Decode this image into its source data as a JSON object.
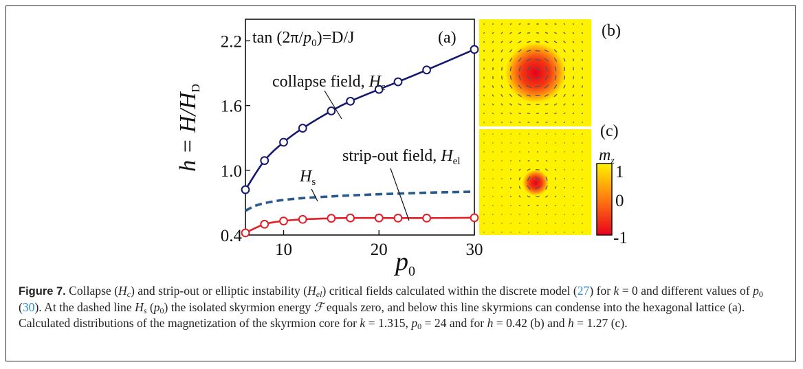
{
  "chart_data": {
    "type": "line",
    "panel_label": "(a)",
    "equation": {
      "base": "tan (2π/",
      "var": "p",
      "sub": "0",
      "rest": ")=D/J"
    },
    "ylabel": {
      "base": "h = H/H",
      "sub": "D"
    },
    "xlabel": {
      "base": "p",
      "sub": "0"
    },
    "xlim": [
      6,
      30
    ],
    "ylim": [
      0.4,
      2.4
    ],
    "x_ticks": [
      10,
      20,
      30
    ],
    "y_ticks": [
      0.4,
      1.0,
      1.6,
      2.2
    ],
    "grid": false,
    "series": [
      {
        "name": "collapse field, H_c",
        "label_base": "collapse field, ",
        "label_var": "H",
        "label_sub": "c",
        "color": "#15186e",
        "style": "solid-markers",
        "x": [
          6,
          8,
          10,
          12,
          15,
          17,
          20,
          22,
          25,
          30
        ],
        "y": [
          0.82,
          1.09,
          1.26,
          1.39,
          1.55,
          1.64,
          1.75,
          1.82,
          1.93,
          2.12
        ]
      },
      {
        "name": "H_s",
        "label_base": "",
        "label_var": "H",
        "label_sub": "s",
        "color": "#2b5b8c",
        "style": "dashed",
        "x": [
          6,
          7,
          8,
          9,
          10,
          12,
          15,
          17,
          20,
          22,
          25,
          28,
          30
        ],
        "y": [
          0.625,
          0.67,
          0.695,
          0.712,
          0.725,
          0.742,
          0.758,
          0.767,
          0.778,
          0.784,
          0.792,
          0.798,
          0.802
        ]
      },
      {
        "name": "strip-out field, H_el",
        "label_base": "strip-out field, ",
        "label_var": "H",
        "label_sub": "el",
        "color": "#e01f26",
        "style": "solid-markers",
        "x": [
          6,
          8,
          10,
          12,
          15,
          17,
          20,
          22,
          25,
          30
        ],
        "y": [
          0.42,
          0.5,
          0.53,
          0.545,
          0.555,
          0.558,
          0.558,
          0.557,
          0.557,
          0.56
        ]
      }
    ],
    "panels": [
      {
        "label": "(b)",
        "core_radius": 0.28
      },
      {
        "label": "(c)",
        "core_radius": 0.12
      }
    ],
    "colorbar": {
      "title_base": "m",
      "title_sub": "z",
      "ticks": [
        "1",
        "0",
        "-1"
      ],
      "colors": [
        "#fff200",
        "#ff7a10",
        "#e8001c"
      ]
    }
  },
  "caption": {
    "fig_label": "Figure 7.",
    "t1": " Collapse (",
    "t2": ") and strip-out or elliptic instability (",
    "t3": ") critical fields calculated within the discrete model (",
    "ref1": "27",
    "t4": ") for ",
    "t5": " = 0 and different values of ",
    "t6": " (",
    "ref2": "30",
    "t7": "). At the dashed line ",
    "t8": ") the isolated skyrmion energy ",
    "t9": " equals zero, and below this line skyrmions can condense into the hexagonal lattice (a). Calculated distributions of the magnetization of the skyrmion core for ",
    "t10": " = 1.315, ",
    "t11": " = 24 and for ",
    "t12": " = 0.42 (b) and ",
    "t13": " = 1.27 (c)."
  }
}
